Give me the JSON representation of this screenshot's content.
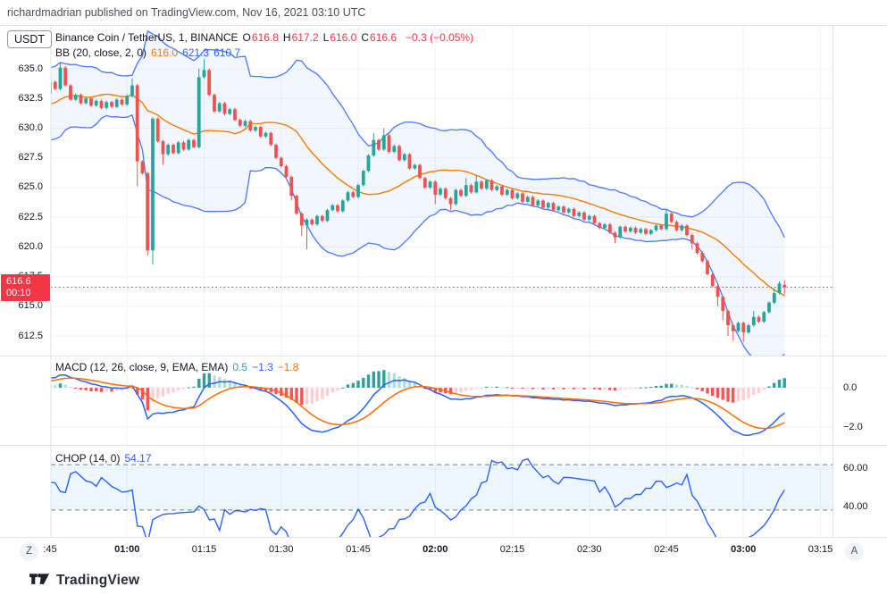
{
  "header": {
    "attribution": "richardmadrian published on TradingView.com, Nov 16, 2021 03:10 UTC"
  },
  "footer": {
    "brand": "TradingView"
  },
  "axis": {
    "unit": "USDT",
    "current_price": "616.6",
    "countdown": "00:10"
  },
  "buttons": {
    "timezone": "Z",
    "auto": "A"
  },
  "legend": {
    "symbol": "Binance Coin / TetherUS, 1, BINANCE",
    "ohlc": [
      {
        "k": "O",
        "v": "616.8"
      },
      {
        "k": "H",
        "v": "617.2"
      },
      {
        "k": "L",
        "v": "616.0"
      },
      {
        "k": "C",
        "v": "616.6"
      }
    ],
    "change": "−0.3 (−0.05%)",
    "bb_title": "BB (20, close, 2, 0)",
    "bb_values": [
      "616.0",
      "621.3",
      "610.7"
    ],
    "macd_title": "MACD (12, 26, close, 9, EMA, EMA)",
    "macd_values": [
      "0.5",
      "−1.3",
      "−1.8"
    ],
    "chop_title": "CHOP (14, 0)",
    "chop_value": "54.17"
  },
  "colors": {
    "up": "#26a69a",
    "down": "#ef5350",
    "bb_band": "#2962ff",
    "bb_basis": "#f57c00",
    "bb_fill": "rgba(41,98,255,0.06)",
    "macd_line": "#2962ff",
    "signal_line": "#ff6d00",
    "hist_up": "#26a69a",
    "hist_up_weak": "#b2dfdb",
    "hist_down": "#ff5252",
    "hist_down_weak": "#ffcdd2",
    "chop_line": "#2962ff",
    "chop_fill": "rgba(33,150,243,0.08)",
    "chop_dash": "#787b86",
    "grid": "#f0f3fa",
    "axis_border": "#e0e3eb",
    "price_line": "#f23645",
    "price_label_bg": "#f23645",
    "text": "#131722"
  },
  "chart_data": {
    "type": "candlestick+indicators",
    "symbol": "Binance Coin / TetherUS",
    "interval_minutes": 1,
    "start_time": "00:45",
    "time_ticks": [
      {
        "label": ":45",
        "bold": false
      },
      {
        "label": "01:00",
        "bold": true
      },
      {
        "label": "01:15",
        "bold": false
      },
      {
        "label": "01:30",
        "bold": false
      },
      {
        "label": "01:45",
        "bold": false
      },
      {
        "label": "02:00",
        "bold": true
      },
      {
        "label": "02:15",
        "bold": false
      },
      {
        "label": "02:30",
        "bold": false
      },
      {
        "label": "02:45",
        "bold": false
      },
      {
        "label": "03:00",
        "bold": true
      },
      {
        "label": "03:15",
        "bold": false
      }
    ],
    "price_ticks": [
      {
        "label": "635.0",
        "value": 635.0
      },
      {
        "label": "632.5",
        "value": 632.5
      },
      {
        "label": "630.0",
        "value": 630.0
      },
      {
        "label": "627.5",
        "value": 627.5
      },
      {
        "label": "625.0",
        "value": 625.0
      },
      {
        "label": "622.5",
        "value": 622.5
      },
      {
        "label": "620.0",
        "value": 620.0
      },
      {
        "label": "617.5",
        "value": 617.5
      },
      {
        "label": "615.0",
        "value": 615.0
      },
      {
        "label": "612.5",
        "value": 612.5
      }
    ],
    "current_price": 616.6,
    "preroll_closes": [
      631.0,
      629.6,
      630.4,
      632.2,
      633.8,
      634.4,
      633.0,
      631.2,
      629.8,
      629.2,
      630.6,
      632.4,
      633.9,
      633.3,
      632.0,
      630.4,
      629.6,
      631.0,
      632.8,
      634.2,
      633.5,
      632.3,
      631.4,
      632.6,
      633.8,
      632.9
    ],
    "closes": [
      633.9,
      633.3,
      635.1,
      633.6,
      632.4,
      632.8,
      632.1,
      632.5,
      631.9,
      632.3,
      631.7,
      632.2,
      631.8,
      632.4,
      632.0,
      632.7,
      633.6,
      627.2,
      626.2,
      619.7,
      630.8,
      628.9,
      627.8,
      628.6,
      627.9,
      628.8,
      628.2,
      629.0,
      628.4,
      634.3,
      634.9,
      632.8,
      631.4,
      632.1,
      631.2,
      631.6,
      630.7,
      630.2,
      630.6,
      629.8,
      630.1,
      629.3,
      629.6,
      628.6,
      627.5,
      626.8,
      625.9,
      624.3,
      622.8,
      621.8,
      622.3,
      621.9,
      622.6,
      622.2,
      623.1,
      623.5,
      623.0,
      623.9,
      624.6,
      624.2,
      625.2,
      626.4,
      627.7,
      629.0,
      628.2,
      629.4,
      628.0,
      628.5,
      627.3,
      627.8,
      626.6,
      626.9,
      625.8,
      625.0,
      625.5,
      624.4,
      624.9,
      624.1,
      623.6,
      624.8,
      624.3,
      625.2,
      624.6,
      625.5,
      624.9,
      625.6,
      624.8,
      625.1,
      624.4,
      624.8,
      624.1,
      624.5,
      623.8,
      624.2,
      623.5,
      623.9,
      623.3,
      623.7,
      623.1,
      623.4,
      622.9,
      623.2,
      622.6,
      622.9,
      622.3,
      622.6,
      622.0,
      621.6,
      621.9,
      621.2,
      620.8,
      621.7,
      621.3,
      621.6,
      621.2,
      621.5,
      621.1,
      621.4,
      621.8,
      621.5,
      622.8,
      622.1,
      621.4,
      621.8,
      621.0,
      620.3,
      619.5,
      618.8,
      617.7,
      616.7,
      615.8,
      614.6,
      613.4,
      612.9,
      613.6,
      612.8,
      613.4,
      614.1,
      613.7,
      614.5,
      615.3,
      616.1,
      616.9,
      616.6
    ],
    "open_overrides": {
      "143": 616.8
    },
    "high_overrides": {
      "2": 635.5,
      "16": 634.2,
      "29": 635.0,
      "30": 635.8,
      "63": 629.6,
      "65": 630.0,
      "81": 625.8,
      "83": 626.0,
      "120": 623.2,
      "137": 614.6,
      "141": 616.5,
      "142": 617.1,
      "143": 617.2
    },
    "low_overrides": {
      "17": 625.1,
      "19": 619.3,
      "20": 618.5,
      "22": 626.9,
      "47": 623.9,
      "49": 620.9,
      "50": 619.8,
      "75": 623.6,
      "78": 623.1,
      "110": 620.3,
      "125": 619.8,
      "130": 615.0,
      "131": 613.8,
      "132": 612.5,
      "133": 612.1,
      "135": 612.0,
      "143": 616.0
    },
    "default_wick": 0.12,
    "bb": {
      "length": 20,
      "mult": 2
    },
    "macd": {
      "fast": 12,
      "slow": 26,
      "signal": 9,
      "ticks": [
        {
          "label": "0.0",
          "value": 0
        },
        {
          "label": "−2.0",
          "value": -2
        }
      ]
    },
    "chop": {
      "length": 14,
      "upper": 61.8,
      "lower": 38.2,
      "ticks": [
        {
          "label": "60.00",
          "value": 60
        },
        {
          "label": "40.00",
          "value": 40
        }
      ]
    }
  }
}
